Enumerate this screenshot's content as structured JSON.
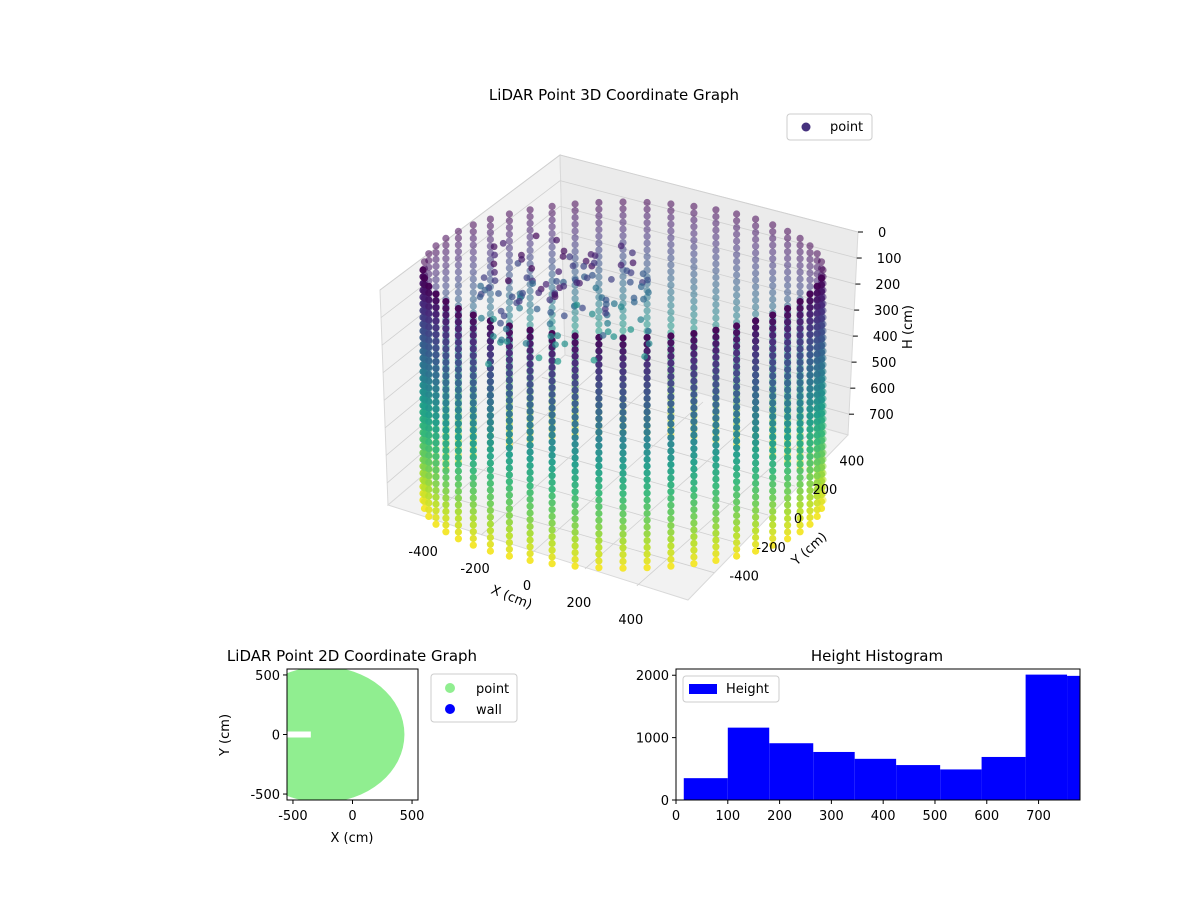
{
  "chart_data": [
    {
      "type": "scatter3d",
      "title": "LiDAR Point 3D Coordinate Graph",
      "xlabel": "X (cm)",
      "ylabel": "Y (cm)",
      "zlabel": "H (cm)",
      "xticks": [
        -400,
        -200,
        0,
        200,
        400
      ],
      "yticks": [
        400,
        200,
        0,
        -200,
        -400
      ],
      "zticks": [
        0,
        100,
        200,
        300,
        400,
        500,
        600,
        700
      ],
      "zlim": [
        0,
        780
      ],
      "legend": [
        "point"
      ],
      "legend_position": "top-right",
      "colormap": "viridis",
      "grid": true,
      "shape": "cylindrical wall of points",
      "radius": 520,
      "height_range": [
        0,
        780
      ],
      "colors": {
        "marker": "#46327e",
        "pane": "#f2f2f2",
        "grid": "#cccccc"
      }
    },
    {
      "type": "scatter",
      "title": "LiDAR Point 2D Coordinate Graph",
      "xlabel": "X (cm)",
      "ylabel": "Y (cm)",
      "xticks": [
        -500,
        0,
        500
      ],
      "yticks": [
        500,
        0,
        -500
      ],
      "xlim": [
        -550,
        550
      ],
      "ylim": [
        -550,
        550
      ],
      "series": [
        {
          "name": "point",
          "color": "#90ee90",
          "shape": "filled disk",
          "radius": 520
        },
        {
          "name": "wall",
          "color": "#0000ff"
        }
      ],
      "legend_position": "outside-right"
    },
    {
      "type": "bar",
      "title": "Height Histogram",
      "xticks": [
        0,
        100,
        200,
        300,
        400,
        500,
        600,
        700
      ],
      "yticks": [
        0,
        1000,
        2000
      ],
      "xlim": [
        0,
        780
      ],
      "ylim": [
        0,
        2100
      ],
      "series": [
        {
          "name": "Height",
          "color": "#0000ff"
        }
      ],
      "bins": [
        {
          "x0": 15,
          "x1": 100,
          "count": 350
        },
        {
          "x0": 100,
          "x1": 180,
          "count": 1160
        },
        {
          "x0": 180,
          "x1": 265,
          "count": 910
        },
        {
          "x0": 265,
          "x1": 345,
          "count": 770
        },
        {
          "x0": 345,
          "x1": 425,
          "count": 660
        },
        {
          "x0": 425,
          "x1": 510,
          "count": 560
        },
        {
          "x0": 510,
          "x1": 590,
          "count": 490
        },
        {
          "x0": 590,
          "x1": 675,
          "count": 690
        },
        {
          "x0": 675,
          "x1": 755,
          "count": 2010
        },
        {
          "x0": 755,
          "x1": 780,
          "count": 1990
        }
      ],
      "legend_position": "top-left"
    }
  ]
}
